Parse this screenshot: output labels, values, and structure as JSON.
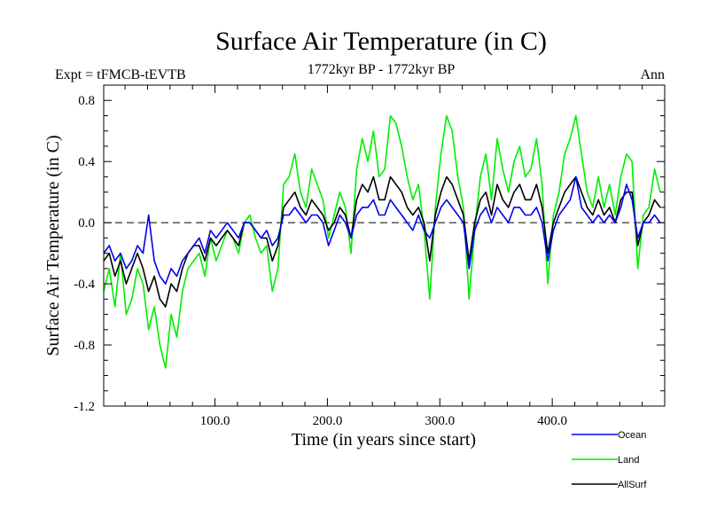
{
  "chart_data": {
    "type": "line",
    "title": "Surface Air Temperature (in C)",
    "subtitle_left": "Expt = tFMCB-tEVTB",
    "subtitle_center": "1772kyr BP - 1772kyr BP",
    "subtitle_right": "Ann",
    "xlabel": "Time (in years since start)",
    "ylabel": "Surface Air Temperature (in C)",
    "xlim": [
      1,
      500
    ],
    "ylim": [
      -1.2,
      0.9
    ],
    "x_ticks": [
      100,
      200,
      300,
      400
    ],
    "x_tick_labels": [
      "100.0",
      "200.0",
      "300.0",
      "400.0"
    ],
    "y_ticks": [
      -1.2,
      -0.8,
      -0.4,
      0.0,
      0.4,
      0.8
    ],
    "y_tick_labels": [
      "-1.2",
      "-0.8",
      "-0.4",
      "0.0",
      "0.4",
      "0.8"
    ],
    "zero_line": "dashed",
    "legend_position": "below-right",
    "series": [
      {
        "name": "Land",
        "color": "#00ee00",
        "x_start": 1,
        "x_step": 5,
        "values": [
          -0.45,
          -0.3,
          -0.55,
          -0.2,
          -0.6,
          -0.5,
          -0.3,
          -0.4,
          -0.7,
          -0.55,
          -0.8,
          -0.95,
          -0.6,
          -0.75,
          -0.45,
          -0.3,
          -0.25,
          -0.2,
          -0.35,
          -0.1,
          -0.25,
          -0.15,
          -0.05,
          -0.1,
          -0.2,
          0.0,
          0.05,
          -0.1,
          -0.2,
          -0.15,
          -0.45,
          -0.3,
          0.25,
          0.3,
          0.45,
          0.2,
          0.1,
          0.35,
          0.25,
          0.15,
          -0.1,
          0.05,
          0.2,
          0.1,
          -0.2,
          0.35,
          0.55,
          0.4,
          0.6,
          0.3,
          0.35,
          0.7,
          0.65,
          0.5,
          0.3,
          0.15,
          0.25,
          -0.05,
          -0.5,
          0.1,
          0.45,
          0.7,
          0.6,
          0.3,
          0.1,
          -0.5,
          -0.05,
          0.3,
          0.45,
          0.15,
          0.55,
          0.35,
          0.2,
          0.4,
          0.5,
          0.3,
          0.35,
          0.55,
          0.25,
          -0.4,
          0.05,
          0.2,
          0.45,
          0.55,
          0.7,
          0.45,
          0.2,
          0.1,
          0.3,
          0.1,
          0.25,
          0.05,
          0.3,
          0.45,
          0.4,
          -0.3,
          0.05,
          0.1,
          0.35,
          0.2
        ]
      },
      {
        "name": "AllSurf",
        "color": "#000000",
        "x_start": 1,
        "x_step": 5,
        "values": [
          -0.25,
          -0.2,
          -0.35,
          -0.25,
          -0.4,
          -0.3,
          -0.2,
          -0.3,
          -0.45,
          -0.35,
          -0.5,
          -0.55,
          -0.4,
          -0.45,
          -0.3,
          -0.2,
          -0.15,
          -0.15,
          -0.25,
          -0.1,
          -0.15,
          -0.1,
          -0.05,
          -0.1,
          -0.15,
          0.0,
          0.0,
          -0.05,
          -0.1,
          -0.1,
          -0.25,
          -0.15,
          0.1,
          0.15,
          0.2,
          0.1,
          0.05,
          0.15,
          0.1,
          0.05,
          -0.05,
          0.0,
          0.1,
          0.05,
          -0.1,
          0.15,
          0.25,
          0.2,
          0.3,
          0.15,
          0.15,
          0.3,
          0.25,
          0.2,
          0.1,
          0.05,
          0.1,
          0.0,
          -0.25,
          0.05,
          0.2,
          0.3,
          0.25,
          0.15,
          0.05,
          -0.25,
          0.0,
          0.15,
          0.2,
          0.05,
          0.25,
          0.15,
          0.1,
          0.2,
          0.25,
          0.15,
          0.15,
          0.25,
          0.1,
          -0.2,
          0.0,
          0.1,
          0.2,
          0.25,
          0.3,
          0.2,
          0.1,
          0.05,
          0.15,
          0.05,
          0.1,
          0.0,
          0.15,
          0.2,
          0.2,
          -0.15,
          0.0,
          0.05,
          0.15,
          0.1
        ]
      },
      {
        "name": "Ocean",
        "color": "#0000ee",
        "x_start": 1,
        "x_step": 5,
        "values": [
          -0.2,
          -0.15,
          -0.25,
          -0.2,
          -0.3,
          -0.25,
          -0.15,
          -0.2,
          0.05,
          -0.25,
          -0.35,
          -0.4,
          -0.3,
          -0.35,
          -0.25,
          -0.2,
          -0.15,
          -0.1,
          -0.2,
          -0.05,
          -0.1,
          -0.05,
          0.0,
          -0.05,
          -0.1,
          0.0,
          0.0,
          -0.05,
          -0.1,
          -0.05,
          -0.15,
          -0.1,
          0.05,
          0.05,
          0.1,
          0.05,
          0.0,
          0.05,
          0.05,
          0.0,
          -0.15,
          -0.05,
          0.05,
          0.0,
          -0.1,
          0.05,
          0.1,
          0.1,
          0.15,
          0.05,
          0.05,
          0.15,
          0.1,
          0.05,
          0.0,
          -0.05,
          0.05,
          -0.05,
          -0.1,
          0.0,
          0.1,
          0.15,
          0.1,
          0.05,
          0.0,
          -0.3,
          -0.05,
          0.05,
          0.1,
          0.0,
          0.1,
          0.05,
          0.0,
          0.1,
          0.1,
          0.05,
          0.05,
          0.1,
          0.0,
          -0.25,
          -0.05,
          0.05,
          0.1,
          0.15,
          0.3,
          0.1,
          0.05,
          0.0,
          0.05,
          0.0,
          0.05,
          0.0,
          0.1,
          0.25,
          0.15,
          -0.1,
          0.0,
          0.0,
          0.05,
          0.0
        ]
      }
    ],
    "legend_order": [
      "Ocean",
      "Land",
      "AllSurf"
    ]
  }
}
